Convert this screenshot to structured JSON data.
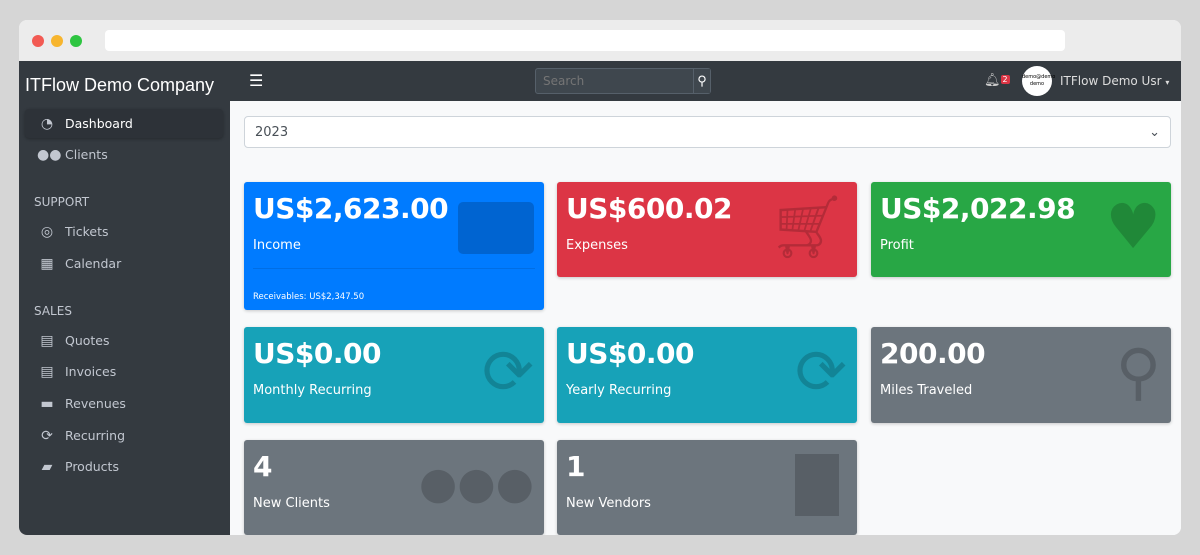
{
  "sidebar": {
    "brand": "ITFlow Demo Company",
    "items": [
      {
        "label": "Dashboard",
        "icon": "tachometer-icon"
      },
      {
        "label": "Clients",
        "icon": "users-icon"
      }
    ],
    "support_header": "SUPPORT",
    "support": [
      {
        "label": "Tickets",
        "icon": "life-ring-icon"
      },
      {
        "label": "Calendar",
        "icon": "calendar-icon"
      }
    ],
    "sales_header": "SALES",
    "sales": [
      {
        "label": "Quotes",
        "icon": "file-icon"
      },
      {
        "label": "Invoices",
        "icon": "invoice-icon"
      },
      {
        "label": "Revenues",
        "icon": "credit-card-icon"
      },
      {
        "label": "Recurring",
        "icon": "sync-icon"
      },
      {
        "label": "Products",
        "icon": "box-icon"
      }
    ]
  },
  "topnav": {
    "search_placeholder": "Search",
    "notifications": "2",
    "avatar_text": "demo@demo demo",
    "user": "ITFlow Demo Usr"
  },
  "year": "2023",
  "cards": [
    {
      "value": "US$2,623.00",
      "label": "Income",
      "footer": "Receivables: US$2,347.50",
      "color": "#007bff"
    },
    {
      "value": "US$600.02",
      "label": "Expenses",
      "color": "#dc3545"
    },
    {
      "value": "US$2,022.98",
      "label": "Profit",
      "color": "#28a745"
    },
    {
      "value": "US$0.00",
      "label": "Monthly Recurring",
      "color": "#17a2b8"
    },
    {
      "value": "US$0.00",
      "label": "Yearly Recurring",
      "color": "#17a2b8"
    },
    {
      "value": "200.00",
      "label": "Miles Traveled",
      "color": "#6c757d"
    },
    {
      "value": "4",
      "label": "New Clients",
      "color": "#6c757d"
    },
    {
      "value": "1",
      "label": "New Vendors",
      "color": "#6c757d"
    }
  ]
}
